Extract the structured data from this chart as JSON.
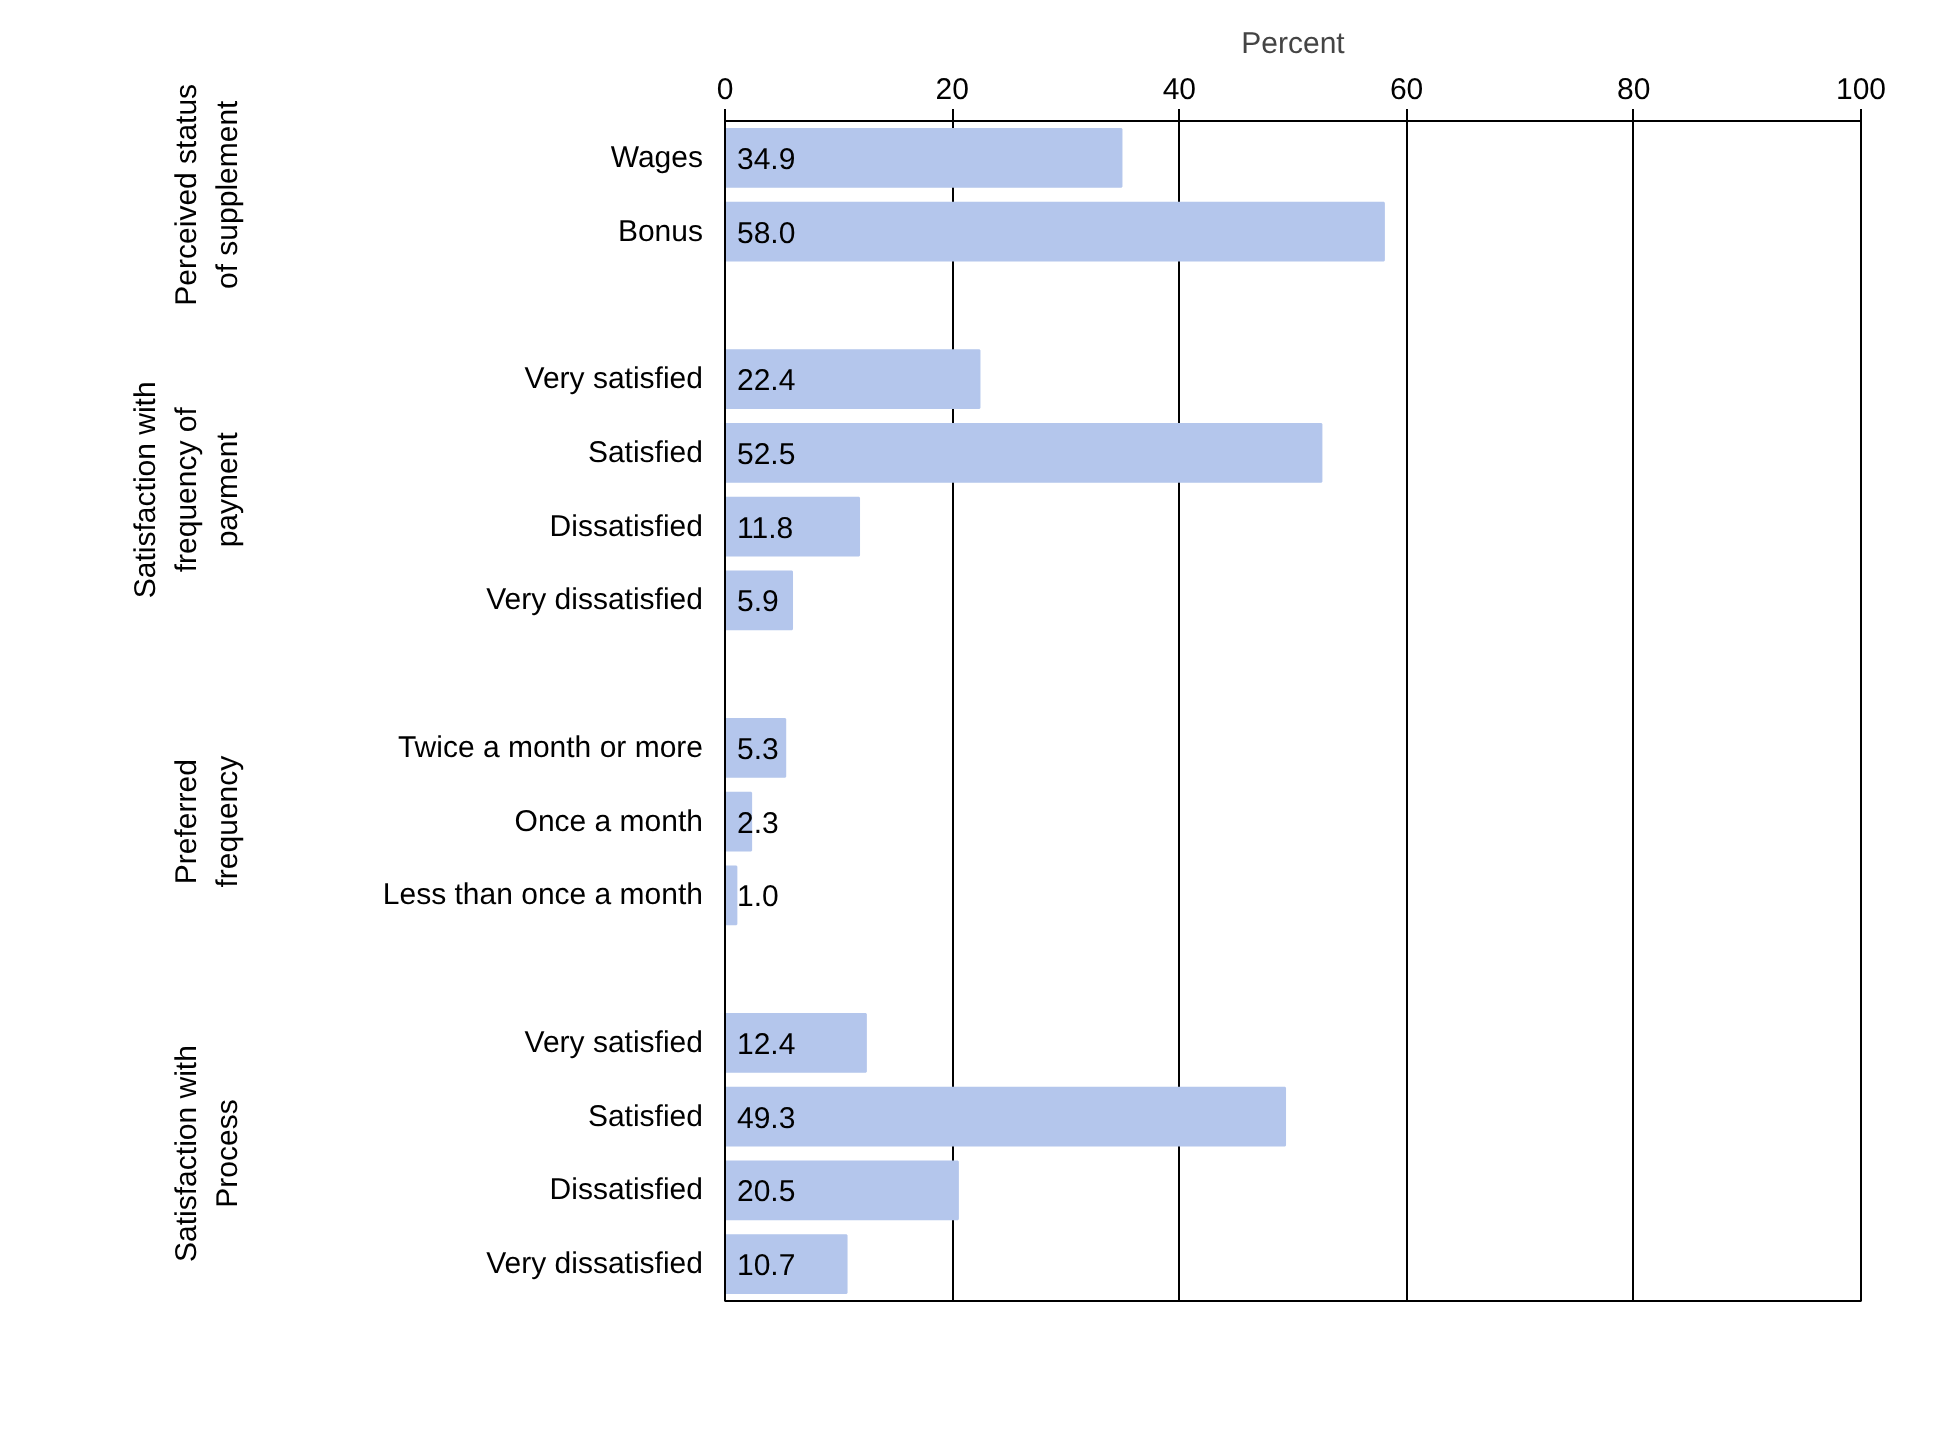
{
  "chart_data": {
    "type": "bar",
    "orientation": "horizontal",
    "xlabel": "Percent",
    "categories": [
      "Wages",
      "Bonus",
      null,
      "Very satisfied",
      "Satisfied",
      "Dissatisfied",
      "Very dissatisfied",
      null,
      "Twice a month or more",
      "Once a month",
      "Less than once a month",
      null,
      "Very satisfied",
      "Satisfied",
      "Dissatisfied",
      "Very dissatisfied"
    ],
    "values": [
      34.9,
      58.0,
      null,
      22.4,
      52.5,
      11.8,
      5.9,
      null,
      5.3,
      2.3,
      1.0,
      null,
      12.4,
      49.3,
      20.5,
      10.7
    ],
    "value_labels": [
      "34.9",
      "58.0",
      null,
      "22.4",
      "52.5",
      "11.8",
      "5.9",
      null,
      "5.3",
      "2.3",
      "1.0",
      null,
      "12.4",
      "49.3",
      "20.5",
      "10.7"
    ],
    "color": "#b4c6ec",
    "xlim": [
      0,
      100
    ],
    "xticks": [
      0,
      20,
      40,
      60,
      80,
      100
    ],
    "grid": "x",
    "annotations": [
      "Perceived status of supplement",
      "Satisfaction with frequency of payment",
      "Preferred frequency",
      "Satisfaction with Process"
    ]
  }
}
